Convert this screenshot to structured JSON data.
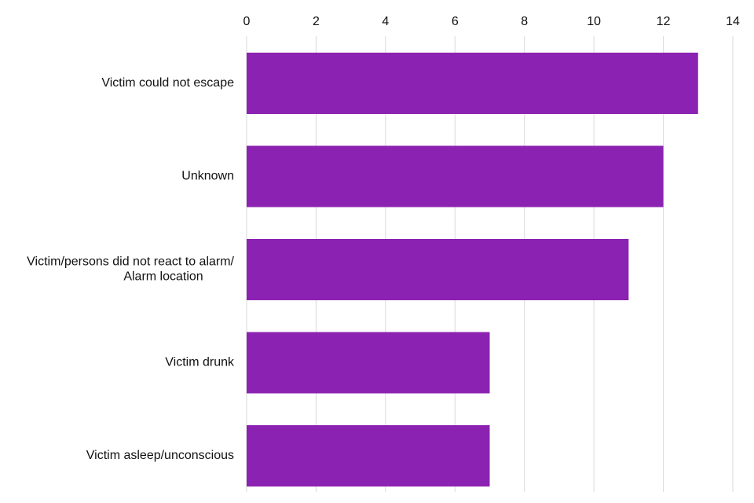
{
  "chart_data": {
    "type": "bar",
    "orientation": "horizontal",
    "title": "",
    "xlabel": "",
    "ylabel": "",
    "xlim": [
      0,
      14
    ],
    "ticks": [
      0,
      2,
      4,
      6,
      8,
      10,
      12,
      14
    ],
    "tick_position": "top",
    "grid": true,
    "categories": [
      [
        "Victim could not escape"
      ],
      [
        "Unknown"
      ],
      [
        "Victim/persons did not react to alarm/",
        "Alarm location"
      ],
      [
        "Victim drunk"
      ],
      [
        "Victim asleep/unconscious"
      ]
    ],
    "values": [
      13,
      12,
      11,
      7,
      7
    ],
    "colors": {
      "bar": "#8B22B1",
      "grid": "#D9D9D9",
      "text": "#111111"
    }
  }
}
